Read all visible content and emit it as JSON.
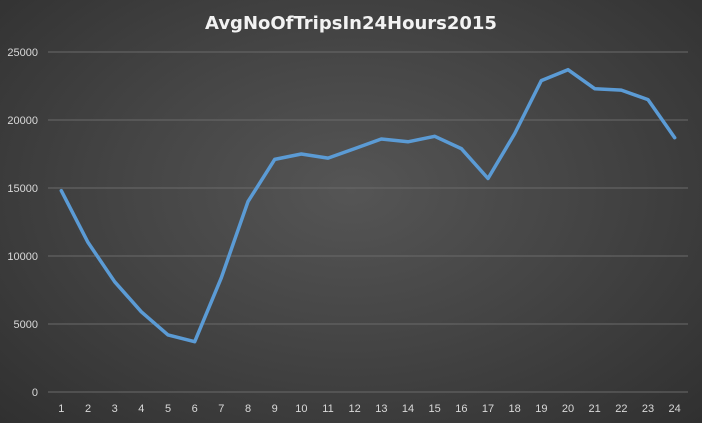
{
  "chart_data": {
    "type": "line",
    "title": "AvgNoOfTripsIn24Hours2015",
    "xlabel": "",
    "ylabel": "",
    "categories": [
      "1",
      "2",
      "3",
      "4",
      "5",
      "6",
      "7",
      "8",
      "9",
      "10",
      "11",
      "12",
      "13",
      "14",
      "15",
      "16",
      "17",
      "18",
      "19",
      "20",
      "21",
      "22",
      "23",
      "24"
    ],
    "series": [
      {
        "values": [
          14800,
          11000,
          8100,
          5900,
          4200,
          3700,
          8400,
          14000,
          17100,
          17500,
          17200,
          17900,
          18600,
          18400,
          18800,
          17900,
          15700,
          19000,
          22900,
          23700,
          22300,
          22200,
          21500,
          18700
        ]
      }
    ],
    "ylim": [
      0,
      25000
    ],
    "yticks": [
      0,
      5000,
      10000,
      15000,
      20000,
      25000
    ],
    "grid": true,
    "legend": "none",
    "colors": {
      "series": "#5b9bd5",
      "background": "#404040",
      "gridline": "#6a6a6a",
      "text": "#d9d9d9"
    }
  }
}
